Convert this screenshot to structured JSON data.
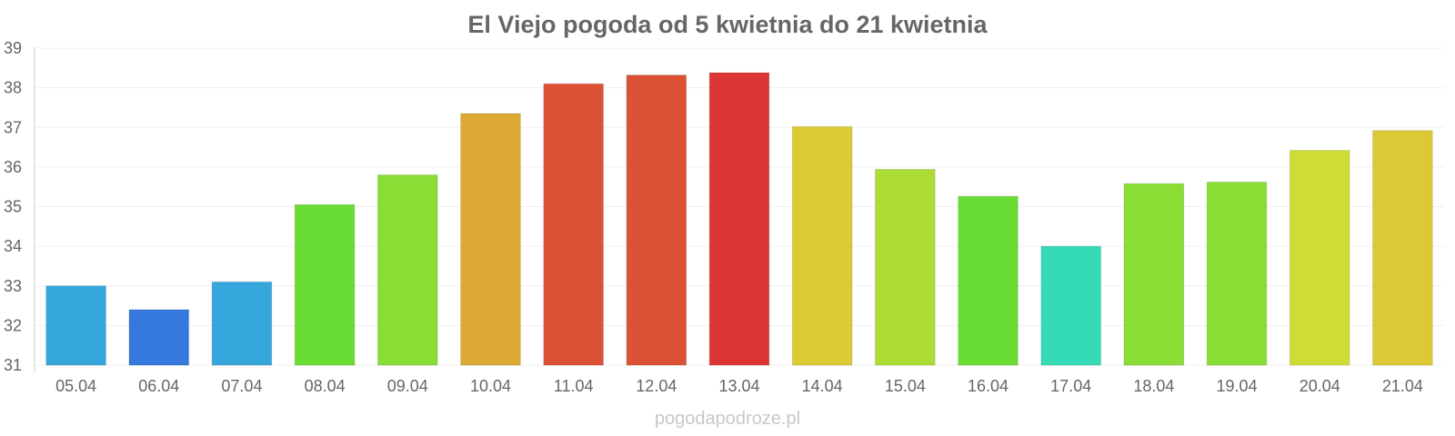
{
  "chart_data": {
    "type": "bar",
    "title": "El Viejo pogoda od 5 kwietnia do 21 kwietnia",
    "xlabel": "",
    "ylabel": "",
    "categories": [
      "05.04",
      "06.04",
      "07.04",
      "08.04",
      "09.04",
      "10.04",
      "11.04",
      "12.04",
      "13.04",
      "14.04",
      "15.04",
      "16.04",
      "17.04",
      "18.04",
      "19.04",
      "20.04",
      "21.04"
    ],
    "values": [
      33.0,
      32.4,
      33.1,
      35.05,
      35.8,
      37.35,
      38.1,
      38.32,
      38.38,
      37.02,
      35.94,
      35.26,
      34.0,
      35.58,
      35.62,
      36.42,
      36.92
    ],
    "colors": [
      "#35a7dd",
      "#3579dd",
      "#35a7dd",
      "#6add35",
      "#89dd35",
      "#dda935",
      "#dd5135",
      "#dd5135",
      "#dd3535",
      "#dccb35",
      "#addd35",
      "#6add35",
      "#35dbb6",
      "#89dd35",
      "#89dd35",
      "#cddd35",
      "#dcc935"
    ],
    "ylim": [
      31,
      39
    ],
    "yticks": [
      31,
      32,
      33,
      34,
      35,
      36,
      37,
      38,
      39
    ],
    "grid": true,
    "legend": "none"
  },
  "footer": "pogodapodroze.pl"
}
